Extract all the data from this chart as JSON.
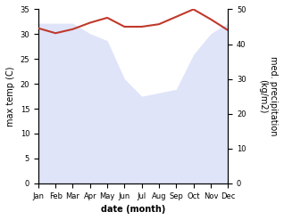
{
  "months": [
    "Jan",
    "Feb",
    "Mar",
    "Apr",
    "May",
    "Jun",
    "Jul",
    "Aug",
    "Sep",
    "Oct",
    "Nov",
    "Dec"
  ],
  "temperature": [
    31.2,
    30.2,
    31.0,
    32.3,
    33.3,
    31.5,
    31.5,
    32.0,
    33.5,
    35.0,
    33.0,
    30.8
  ],
  "precipitation": [
    46,
    46,
    46,
    43,
    41,
    30,
    25,
    26,
    27,
    37,
    43,
    46
  ],
  "temp_color": "#c0392b",
  "precip_fill_color": "#c5cef5",
  "left_ylim": [
    0,
    35
  ],
  "right_ylim": [
    0,
    50
  ],
  "left_yticks": [
    0,
    5,
    10,
    15,
    20,
    25,
    30,
    35
  ],
  "right_yticks": [
    0,
    10,
    20,
    30,
    40,
    50
  ],
  "xlabel": "date (month)",
  "ylabel_left": "max temp (C)",
  "ylabel_right": "med. precipitation\n(kg/m2)"
}
